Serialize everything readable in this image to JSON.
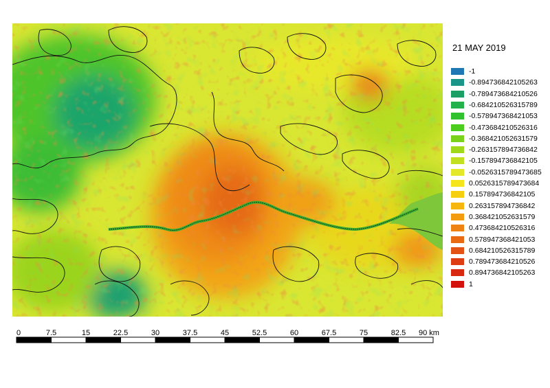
{
  "map": {
    "date_title": "21 MAY 2019"
  },
  "legend": [
    {
      "label": "-1",
      "color": "#1f78b4"
    },
    {
      "label": "-0.894736842105263",
      "color": "#1a9688"
    },
    {
      "label": "-0.789473684210526",
      "color": "#1aa064"
    },
    {
      "label": "-0.684210526315789",
      "color": "#22b14a"
    },
    {
      "label": "-0.578947368421053",
      "color": "#30c22e"
    },
    {
      "label": "-0.473684210526316",
      "color": "#4ccd1e"
    },
    {
      "label": "-0.368421052631579",
      "color": "#7ad31a"
    },
    {
      "label": "-0.263157894736842",
      "color": "#a0d91a"
    },
    {
      "label": "-0.157894736842105",
      "color": "#c3e020"
    },
    {
      "label": "-0.0526315789473685",
      "color": "#e3e828"
    },
    {
      "label": "0.0526315789473684",
      "color": "#f4e51c"
    },
    {
      "label": "0.157894736842105",
      "color": "#f6cf10"
    },
    {
      "label": "0.263157894736842",
      "color": "#f6b60e"
    },
    {
      "label": "0.368421052631579",
      "color": "#f39c0f"
    },
    {
      "label": "0.473684210526316",
      "color": "#ee8212"
    },
    {
      "label": "0.578947368421053",
      "color": "#ea6a14"
    },
    {
      "label": "0.684210526315789",
      "color": "#e45316"
    },
    {
      "label": "0.789473684210526",
      "color": "#de3d14"
    },
    {
      "label": "0.894736842105263",
      "color": "#d92810"
    },
    {
      "label": "1",
      "color": "#d4120c"
    }
  ],
  "scale_bar": {
    "labels": [
      "0",
      "7.5",
      "15",
      "22.5",
      "30",
      "37.5",
      "45",
      "52.5",
      "60",
      "67.5",
      "75",
      "82.5",
      "90 km"
    ]
  }
}
